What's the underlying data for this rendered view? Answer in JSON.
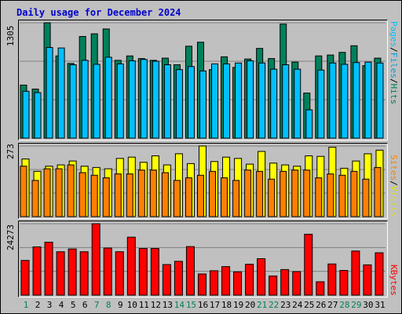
{
  "chart_data": {
    "type": "bar",
    "title": "Daily usage for December 2024",
    "categories": [
      "1",
      "2",
      "3",
      "4",
      "5",
      "6",
      "7",
      "8",
      "9",
      "10",
      "11",
      "12",
      "13",
      "14",
      "15",
      "16",
      "17",
      "18",
      "19",
      "20",
      "21",
      "22",
      "23",
      "24",
      "25",
      "26",
      "27",
      "28",
      "29",
      "30",
      "31"
    ],
    "weekend_days": [
      "1",
      "7",
      "8",
      "14",
      "15",
      "21",
      "22",
      "28",
      "29"
    ],
    "panels": [
      {
        "name": "requests",
        "ymax_label": "1305",
        "ylim": [
          0,
          1305
        ],
        "legend": [
          "Pages",
          "Files",
          "Hits"
        ],
        "series": [
          {
            "name": "Hits",
            "color": "#00805c",
            "values": [
              600,
              555,
              1305,
              930,
              845,
              1150,
              1180,
              1235,
              880,
              930,
              900,
              880,
              905,
              830,
              1040,
              1085,
              775,
              920,
              800,
              895,
              1015,
              900,
              1290,
              860,
              510,
              930,
              940,
              970,
              1045,
              820,
              905
            ]
          },
          {
            "name": "Files",
            "color": "#00c0ff",
            "values": [
              530,
              515,
              1025,
              1020,
              830,
              880,
              835,
              915,
              840,
              875,
              890,
              870,
              830,
              775,
              810,
              760,
              840,
              840,
              850,
              875,
              850,
              780,
              830,
              780,
              320,
              770,
              850,
              835,
              855,
              860,
              850
            ]
          },
          {
            "name": "Pages",
            "color": "#0000ff",
            "values": [
              0,
              0,
              0,
              0,
              0,
              0,
              0,
              0,
              0,
              0,
              0,
              0,
              0,
              0,
              0,
              0,
              0,
              0,
              0,
              0,
              0,
              0,
              0,
              0,
              0,
              0,
              0,
              0,
              0,
              0,
              0
            ]
          }
        ]
      },
      {
        "name": "visits",
        "ymax_label": "273",
        "ylim": [
          0,
          273
        ],
        "legend": [
          "Sites",
          "Visits"
        ],
        "series": [
          {
            "name": "Visits",
            "color": "#ffff00",
            "values": [
              223,
              175,
              195,
              200,
              215,
              195,
              190,
              185,
              225,
              230,
              210,
              235,
              200,
              243,
              205,
              273,
              213,
              230,
              225,
              203,
              252,
              207,
              200,
              195,
              235,
              233,
              268,
              187,
              215,
              243,
              257
            ]
          },
          {
            "name": "Sites",
            "color": "#ff8000",
            "values": [
              195,
              140,
              185,
              185,
              200,
              170,
              160,
              150,
              165,
              165,
              180,
              180,
              170,
              140,
              150,
              160,
              175,
              150,
              140,
              180,
              175,
              145,
              175,
              180,
              180,
              150,
              165,
              160,
              175,
              145,
              190
            ]
          }
        ]
      },
      {
        "name": "kbytes",
        "ymax_label": "24273",
        "ylim": [
          0,
          24273
        ],
        "legend": [
          "KBytes"
        ],
        "series": [
          {
            "name": "KBytes",
            "color": "#ff0000",
            "values": [
              11800,
              16400,
              18000,
              14750,
              15700,
              14750,
              24273,
              16000,
              14750,
              19700,
              15850,
              15850,
              10400,
              11500,
              16500,
              7200,
              8300,
              9700,
              7900,
              10500,
              12400,
              6500,
              8700,
              8000,
              20700,
              4550,
              10600,
              8400,
              15000,
              10300,
              14400
            ]
          }
        ]
      }
    ]
  },
  "colors": {
    "title": "#0000cc",
    "pages": "#00c0ff",
    "files": "#00c0ff",
    "hits": "#00805c",
    "sites": "#ff8000",
    "visits": "#ffff00",
    "kbytes": "#ff0000",
    "weekday_label": "#000000",
    "weekend_label": "#00805c"
  }
}
